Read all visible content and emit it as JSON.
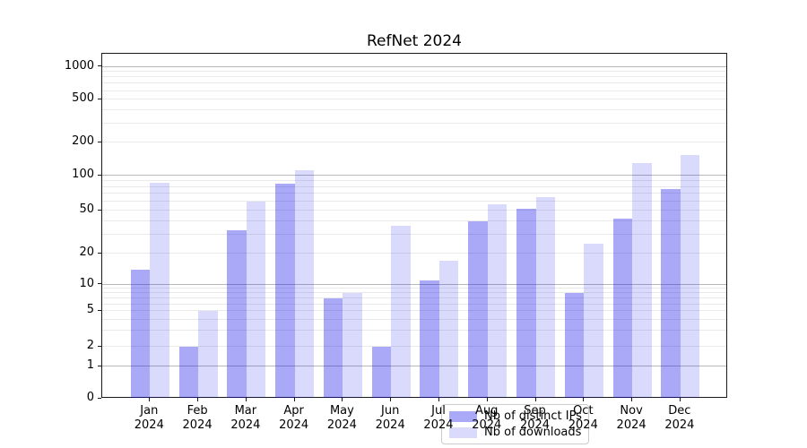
{
  "title": "RefNet 2024",
  "legend": {
    "items": [
      {
        "label": "Nb of distinct IPs",
        "series": "ips"
      },
      {
        "label": "Nb of downloads",
        "series": "downloads"
      }
    ]
  },
  "colors": {
    "bar_base": "#0a0aeb",
    "ips_alpha": 0.35,
    "downloads_alpha": 0.15,
    "ips_rendered": "#a8a8f4",
    "downloads_rendered": "#d9d9f9",
    "major_grid": "#b8b8b8",
    "minor_grid": "#e9e9e9",
    "spine": "#1a1a1a",
    "background": "#ffffff"
  },
  "chart_data": {
    "type": "bar",
    "title": "RefNet 2024",
    "categories": [
      {
        "month": "Jan",
        "year": "2024"
      },
      {
        "month": "Feb",
        "year": "2024"
      },
      {
        "month": "Mar",
        "year": "2024"
      },
      {
        "month": "Apr",
        "year": "2024"
      },
      {
        "month": "May",
        "year": "2024"
      },
      {
        "month": "Jun",
        "year": "2024"
      },
      {
        "month": "Jul",
        "year": "2024"
      },
      {
        "month": "Aug",
        "year": "2024"
      },
      {
        "month": "Sep",
        "year": "2024"
      },
      {
        "month": "Oct",
        "year": "2024"
      },
      {
        "month": "Nov",
        "year": "2024"
      },
      {
        "month": "Dec",
        "year": "2024"
      }
    ],
    "series": [
      {
        "name": "Nb of distinct IPs",
        "key": "ips",
        "values": [
          14,
          2,
          33,
          85,
          7,
          2,
          11,
          40,
          52,
          8,
          42,
          77
        ]
      },
      {
        "name": "Nb of downloads",
        "key": "downloads",
        "values": [
          87,
          5,
          60,
          113,
          8,
          36,
          17,
          57,
          65,
          25,
          130,
          154
        ]
      }
    ],
    "yscale": "symlog",
    "yticks": [
      0,
      1,
      2,
      5,
      10,
      20,
      50,
      100,
      200,
      500,
      1000
    ],
    "ylim": [
      0,
      1320
    ],
    "xlabel": "",
    "ylabel": "",
    "grid": true,
    "legend_position": "lower center"
  }
}
